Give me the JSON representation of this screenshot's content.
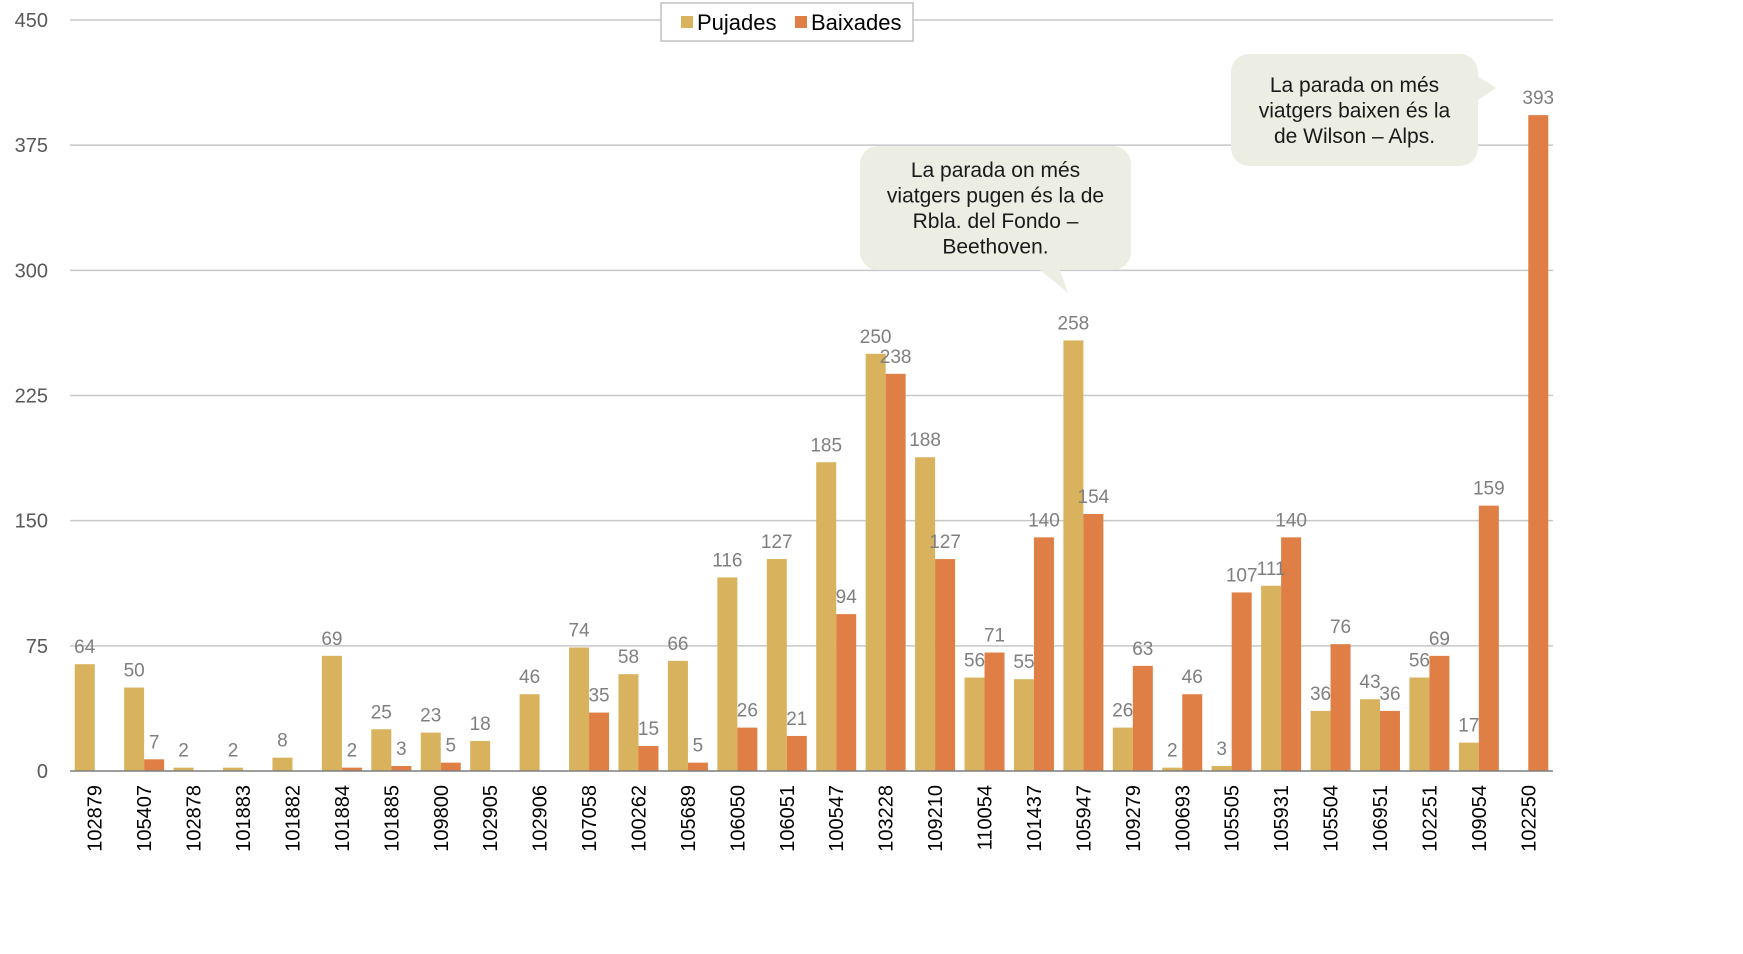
{
  "colors": {
    "pujades": "#d8b25c",
    "baixades": "#e07f45",
    "gridline": "#c8c8c8",
    "callout_fill": "#eceee4"
  },
  "legend": {
    "placement": "top-center",
    "items": [
      "Pujades",
      "Baixades"
    ]
  },
  "callouts": [
    {
      "lines": [
        "La parada on més",
        "viatgers pugen és la de",
        "Rbla. del Fondo –",
        "Beethoven."
      ],
      "points_to_category": "105947"
    },
    {
      "lines": [
        "La parada on més",
        "viatgers baixen és la",
        "de Wilson – Alps."
      ],
      "points_to_category": "102250"
    }
  ],
  "chart_data": {
    "type": "bar",
    "title": "",
    "xlabel": "",
    "ylabel": "",
    "ylim": [
      0,
      450
    ],
    "yticks": [
      0,
      75,
      150,
      225,
      300,
      375,
      450
    ],
    "grid": "horizontal",
    "categories": [
      "102879",
      "105407",
      "102878",
      "101883",
      "101882",
      "101884",
      "101885",
      "109800",
      "102905",
      "102906",
      "107058",
      "100262",
      "105689",
      "106050",
      "106051",
      "100547",
      "103228",
      "109210",
      "110054",
      "101437",
      "105947",
      "109279",
      "100693",
      "105505",
      "105931",
      "105504",
      "106951",
      "102251",
      "109054",
      "102250"
    ],
    "series": [
      {
        "name": "Pujades",
        "values": [
          64,
          50,
          2,
          2,
          8,
          69,
          25,
          23,
          18,
          46,
          74,
          58,
          66,
          116,
          127,
          185,
          250,
          188,
          56,
          55,
          258,
          26,
          2,
          3,
          111,
          36,
          43,
          56,
          17,
          null
        ]
      },
      {
        "name": "Baixades",
        "values": [
          null,
          7,
          null,
          null,
          null,
          2,
          3,
          5,
          null,
          null,
          35,
          15,
          5,
          26,
          21,
          94,
          238,
          127,
          71,
          140,
          154,
          63,
          46,
          107,
          140,
          76,
          36,
          69,
          159,
          393
        ]
      }
    ]
  }
}
